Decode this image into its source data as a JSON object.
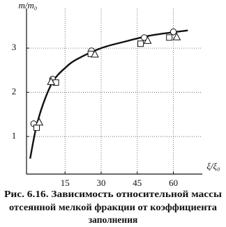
{
  "chart_data": {
    "type": "scatter",
    "y_label": "m/m₀",
    "x_label": "ξ/ξ₀",
    "caption": [
      "Рис. 6.16. Зависимость относительной массы",
      "отсеянной мелкой фракции от коэффициента",
      "заполнения"
    ],
    "xlim": [
      -1,
      72
    ],
    "ylim": [
      0.15,
      3.9
    ],
    "xticks": [
      15,
      30,
      45,
      60
    ],
    "yticks": [
      1,
      2,
      3
    ],
    "grid": true,
    "color": "#111111",
    "series": [
      {
        "marker": "circle",
        "x": [
          2,
          9.8,
          26,
          47.9,
          60
        ],
        "values": [
          1.29,
          2.3,
          2.94,
          3.24,
          3.37
        ]
      },
      {
        "marker": "square",
        "x": [
          3.2,
          11.2,
          25.7,
          46.4,
          58.3
        ],
        "values": [
          1.2,
          2.22,
          2.87,
          3.1,
          3.24
        ]
      },
      {
        "marker": "triangle",
        "x": [
          4.3,
          9.2,
          27.4,
          49.3,
          61.4
        ],
        "values": [
          1.32,
          2.24,
          2.86,
          3.17,
          3.25
        ]
      }
    ],
    "curve": {
      "x": [
        0.5,
        3,
        6,
        10,
        15,
        20,
        30,
        40,
        50,
        60,
        66
      ],
      "values": [
        0.5,
        1.2,
        1.75,
        2.25,
        2.55,
        2.75,
        3.0,
        3.15,
        3.28,
        3.36,
        3.4
      ]
    }
  }
}
